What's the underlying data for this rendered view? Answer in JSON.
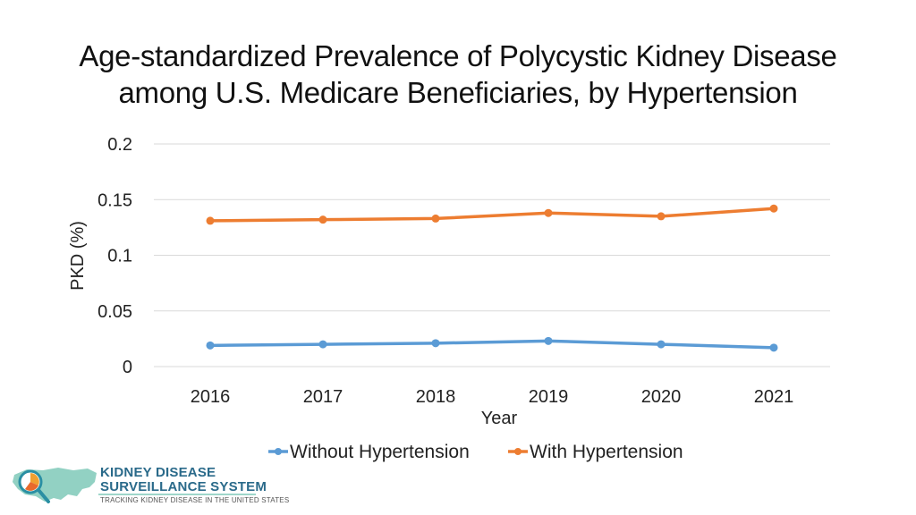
{
  "chart_data": {
    "type": "line",
    "title_lines": [
      "Age-standardized Prevalence of Polycystic Kidney Disease",
      "among U.S. Medicare Beneficiaries, by Hypertension"
    ],
    "xlabel": "Year",
    "ylabel": "PKD (%)",
    "categories": [
      "2016",
      "2017",
      "2018",
      "2019",
      "2020",
      "2021"
    ],
    "ylim": [
      0,
      0.2
    ],
    "yticks": [
      "0",
      "0.05",
      "0.1",
      "0.15",
      "0.2"
    ],
    "grid": true,
    "legend_position": "bottom",
    "series": [
      {
        "name": "Without Hypertension",
        "color": "#5b9bd5",
        "values": [
          0.019,
          0.02,
          0.021,
          0.023,
          0.02,
          0.017
        ]
      },
      {
        "name": "With Hypertension",
        "color": "#ed7d31",
        "values": [
          0.131,
          0.132,
          0.133,
          0.138,
          0.135,
          0.142
        ]
      }
    ]
  },
  "branding": {
    "name_line1": "KIDNEY DISEASE",
    "name_line2": "SURVEILLANCE SYSTEM",
    "tagline": "TRACKING KIDNEY DISEASE IN THE UNITED STATES"
  }
}
